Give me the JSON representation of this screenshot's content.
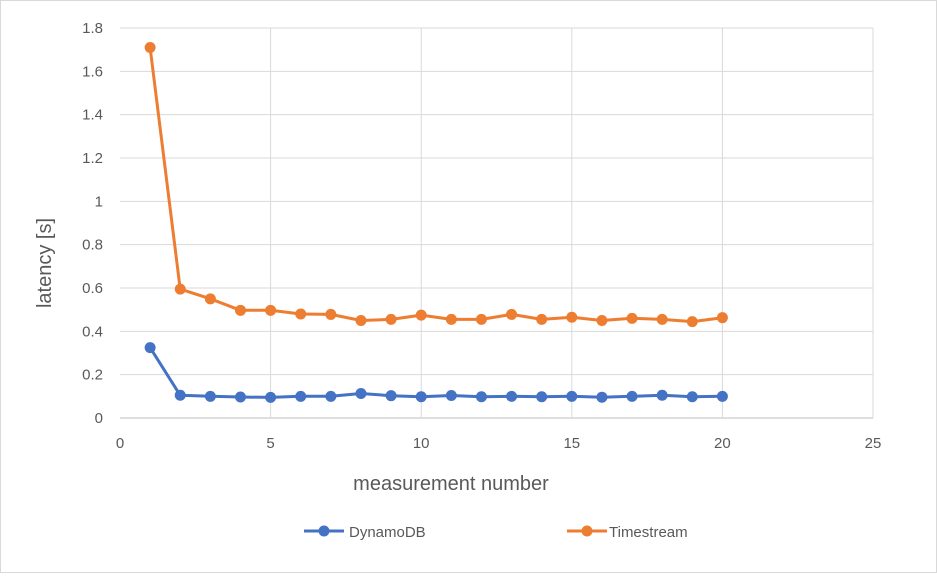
{
  "chart_data": {
    "type": "line",
    "title": "",
    "xlabel": "measurement number",
    "ylabel": "latency [s]",
    "xlim": [
      0,
      25
    ],
    "ylim": [
      0,
      1.8
    ],
    "x_ticks": [
      0,
      5,
      10,
      15,
      20,
      25
    ],
    "y_ticks": [
      0,
      0.2,
      0.4,
      0.6,
      0.8,
      1,
      1.2,
      1.4,
      1.6,
      1.8
    ],
    "grid": true,
    "legend_position": "bottom",
    "x": [
      1,
      2,
      3,
      4,
      5,
      6,
      7,
      8,
      9,
      10,
      11,
      12,
      13,
      14,
      15,
      16,
      17,
      18,
      19,
      20
    ],
    "series": [
      {
        "name": "DynamoDB",
        "color": "#4472c4",
        "values": [
          0.325,
          0.105,
          0.1,
          0.097,
          0.095,
          0.1,
          0.1,
          0.113,
          0.103,
          0.098,
          0.104,
          0.098,
          0.1,
          0.098,
          0.1,
          0.096,
          0.1,
          0.105,
          0.098,
          0.1
        ]
      },
      {
        "name": "Timestream",
        "color": "#ed7d31",
        "values": [
          1.71,
          0.595,
          0.55,
          0.497,
          0.497,
          0.48,
          0.478,
          0.45,
          0.455,
          0.475,
          0.455,
          0.455,
          0.478,
          0.455,
          0.465,
          0.45,
          0.46,
          0.455,
          0.445,
          0.463
        ]
      }
    ]
  }
}
